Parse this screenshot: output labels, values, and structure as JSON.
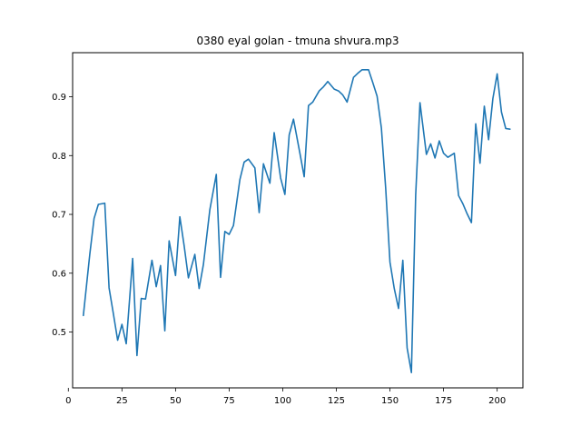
{
  "chart_data": {
    "type": "line",
    "title": "0380 eyal golan - tmuna shvura.mp3",
    "xlabel": "",
    "ylabel": "",
    "xlim": [
      2,
      212
    ],
    "ylim": [
      0.405,
      0.975
    ],
    "grid": false,
    "line_color": "#1f77b4",
    "xticks": [
      0,
      25,
      50,
      75,
      100,
      125,
      150,
      175,
      200
    ],
    "yticks": [
      0.5,
      0.6,
      0.7,
      0.8,
      0.9
    ],
    "xtick_labels": [
      "0",
      "25",
      "50",
      "75",
      "100",
      "125",
      "150",
      "175",
      "200"
    ],
    "ytick_labels": [
      "0.5",
      "0.6",
      "0.7",
      "0.8",
      "0.9"
    ],
    "series": [
      {
        "x": [
          7,
          10,
          12,
          14,
          17,
          19,
          21,
          23,
          25,
          27,
          30,
          32,
          34,
          36,
          39,
          41,
          43,
          45,
          47,
          50,
          52,
          54,
          56,
          59,
          61,
          63,
          66,
          69,
          71,
          73,
          75,
          77,
          80,
          82,
          84,
          87,
          89,
          91,
          94,
          96,
          99,
          101,
          103,
          105,
          108,
          110,
          112,
          114,
          117,
          119,
          121,
          124,
          126,
          128,
          130,
          133,
          135,
          137,
          140,
          142,
          144,
          146,
          148,
          150,
          152,
          154,
          156,
          158,
          160,
          162,
          164,
          167,
          169,
          171,
          173,
          175,
          177,
          180,
          182,
          184,
          186,
          188,
          190,
          192,
          194,
          196,
          198,
          200,
          202,
          204,
          206
        ],
        "y": [
          0.528,
          0.632,
          0.693,
          0.717,
          0.719,
          0.575,
          0.531,
          0.486,
          0.513,
          0.48,
          0.625,
          0.46,
          0.557,
          0.556,
          0.622,
          0.577,
          0.613,
          0.502,
          0.655,
          0.596,
          0.696,
          0.647,
          0.592,
          0.632,
          0.574,
          0.615,
          0.708,
          0.768,
          0.593,
          0.671,
          0.666,
          0.681,
          0.759,
          0.789,
          0.794,
          0.779,
          0.703,
          0.786,
          0.753,
          0.839,
          0.762,
          0.734,
          0.835,
          0.862,
          0.804,
          0.764,
          0.885,
          0.891,
          0.91,
          0.917,
          0.926,
          0.913,
          0.91,
          0.903,
          0.891,
          0.933,
          0.94,
          0.946,
          0.946,
          0.924,
          0.901,
          0.847,
          0.745,
          0.619,
          0.574,
          0.54,
          0.622,
          0.473,
          0.431,
          0.733,
          0.89,
          0.802,
          0.82,
          0.796,
          0.825,
          0.804,
          0.797,
          0.804,
          0.732,
          0.718,
          0.701,
          0.686,
          0.854,
          0.787,
          0.884,
          0.827,
          0.897,
          0.939,
          0.874,
          0.846,
          0.845
        ]
      }
    ]
  }
}
